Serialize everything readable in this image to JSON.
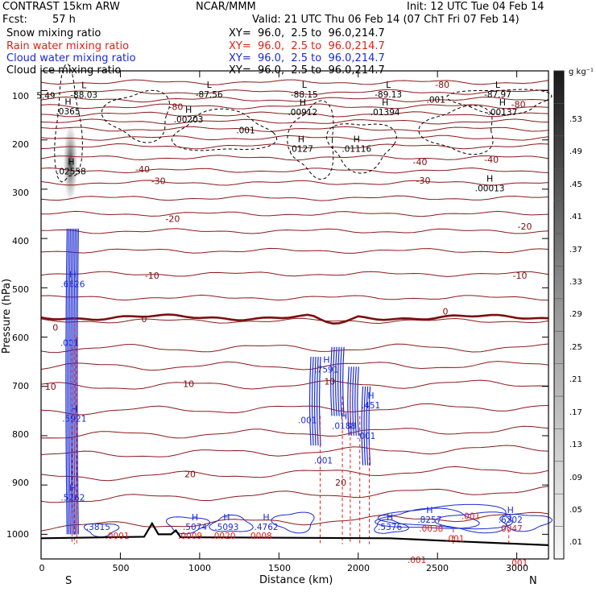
{
  "header": {
    "model": "CONTRAST 15km ARW",
    "center": "NCAR/MMM",
    "init": "Init: 12 UTC Tue 04 Feb 14",
    "fcst_label": "Fcst:",
    "fcst_value": "57 h",
    "valid": "Valid: 21 UTC Thu 06 Feb 14 (07 ChT Fri 07 Feb 14)"
  },
  "legend": [
    {
      "name": "Snow mixing ratio",
      "color": "#000000",
      "xy": "XY=  96.0,  2.5 to  96.0,214.7"
    },
    {
      "name": "Rain water mixing ratio",
      "color": "#e0201c",
      "xy": "XY=  96.0,  2.5 to  96.0,214.7"
    },
    {
      "name": "Cloud water mixing ratio",
      "color": "#1a2ad4",
      "xy": "XY=  96.0,  2.5 to  96.0,214.7"
    },
    {
      "name": "Cloud ice mixing ratio",
      "color": "#000000",
      "xy": "XY=  96.0,  2.5 to  96.0,214.7"
    }
  ],
  "chart_data": {
    "type": "contour cross-section",
    "xlabel": "Distance (km)",
    "ylabel": "Pressure (hPa)",
    "x_ticks": [
      0,
      500,
      1000,
      1500,
      2000,
      2500,
      3000
    ],
    "y_ticks": [
      100,
      200,
      300,
      400,
      500,
      600,
      700,
      800,
      900,
      1000
    ],
    "xlim": [
      0,
      3200
    ],
    "ylim_inverted": [
      60,
      1050
    ],
    "x_end_labels": {
      "left": "S",
      "right": "N"
    },
    "colorbar": {
      "unit": "g kg⁻¹",
      "labels": [
        ".53",
        ".49",
        ".45",
        ".41",
        ".37",
        ".33",
        ".29",
        ".25",
        ".21",
        ".17",
        ".13",
        ".09",
        ".05",
        ".01"
      ]
    },
    "temperature_isotherm_labels": [
      {
        "text": "-80",
        "x": 2530,
        "p": 88
      },
      {
        "text": "-80",
        "x": 850,
        "p": 133
      },
      {
        "text": "-80",
        "x": 3010,
        "p": 128
      },
      {
        "text": "-40",
        "x": 640,
        "p": 259
      },
      {
        "text": "-40",
        "x": 2390,
        "p": 245
      },
      {
        "text": "-40",
        "x": 2840,
        "p": 240
      },
      {
        "text": "-30",
        "x": 740,
        "p": 283
      },
      {
        "text": "-30",
        "x": 2410,
        "p": 282
      },
      {
        "text": "-20",
        "x": 830,
        "p": 360
      },
      {
        "text": "-20",
        "x": 3050,
        "p": 375
      },
      {
        "text": "-10",
        "x": 700,
        "p": 475
      },
      {
        "text": "-10",
        "x": 3020,
        "p": 475
      },
      {
        "text": "0",
        "x": 650,
        "p": 563
      },
      {
        "text": "0",
        "x": 2550,
        "p": 548
      },
      {
        "text": "0",
        "x": 90,
        "p": 580
      },
      {
        "text": "10",
        "x": 930,
        "p": 695
      },
      {
        "text": "10",
        "x": 1820,
        "p": 690
      },
      {
        "text": "10",
        "x": 60,
        "p": 700
      },
      {
        "text": "20",
        "x": 940,
        "p": 878
      },
      {
        "text": "20",
        "x": 1890,
        "p": 895
      }
    ],
    "extrema_labels": [
      {
        "letter": "L",
        "value": "-88.03",
        "x": 270,
        "p": 108
      },
      {
        "letter": "L",
        "value": "-87.56",
        "x": 1060,
        "p": 107
      },
      {
        "letter": "L",
        "value": "-88.15",
        "x": 1660,
        "p": 107
      },
      {
        "letter": "L",
        "value": "-89.13",
        "x": 2190,
        "p": 107
      },
      {
        "letter": "L",
        "value": "-87.97",
        "x": 2880,
        "p": 107
      },
      {
        "letter": "",
        "value": "5.49",
        "x": 30,
        "p": 110
      },
      {
        "letter": "H",
        "value": ".0365",
        "x": 170,
        "p": 142
      },
      {
        "letter": "H",
        "value": ".00203",
        "x": 930,
        "p": 158
      },
      {
        "letter": "",
        "value": ".001",
        "x": 1290,
        "p": 180
      },
      {
        "letter": "H",
        "value": ".00912",
        "x": 1650,
        "p": 143
      },
      {
        "letter": "H",
        "value": ".01394",
        "x": 2170,
        "p": 143
      },
      {
        "letter": "",
        "value": ".001",
        "x": 2490,
        "p": 118
      },
      {
        "letter": "H",
        "value": ".00137",
        "x": 2910,
        "p": 143
      },
      {
        "letter": "H",
        "value": ".0127",
        "x": 1640,
        "p": 218
      },
      {
        "letter": "H",
        "value": ".01116",
        "x": 1990,
        "p": 218
      },
      {
        "letter": "H",
        "value": ".02558",
        "x": 190,
        "p": 263
      },
      {
        "letter": "H",
        "value": ".00013",
        "x": 2830,
        "p": 298
      },
      {
        "letter": "H",
        "value": ".6626",
        "x": 200,
        "p": 492
      },
      {
        "letter": "",
        "value": ".001",
        "x": 180,
        "p": 611
      },
      {
        "letter": "H",
        "value": ".7591",
        "x": 1800,
        "p": 665
      },
      {
        "letter": "H",
        "value": ".451",
        "x": 2080,
        "p": 738
      },
      {
        "letter": "",
        "value": ".001",
        "x": 1680,
        "p": 768
      },
      {
        "letter": "H",
        "value": ".0188",
        "x": 1910,
        "p": 780
      },
      {
        "letter": "",
        "value": ".001",
        "x": 2050,
        "p": 800
      },
      {
        "letter": "",
        "value": ".001",
        "x": 1780,
        "p": 850
      },
      {
        "letter": "H",
        "value": ".5921",
        "x": 210,
        "p": 765
      },
      {
        "letter": "H",
        "value": ".5262",
        "x": 200,
        "p": 925
      },
      {
        "letter": "",
        "value": ".3815",
        "x": 360,
        "p": 985
      },
      {
        "letter": "",
        "value": ".0001",
        "x": 480,
        "p": 1003
      },
      {
        "letter": "H",
        "value": ".5074",
        "x": 970,
        "p": 985
      },
      {
        "letter": "",
        "value": ".0009",
        "x": 940,
        "p": 1003
      },
      {
        "letter": "H",
        "value": ".5093",
        "x": 1170,
        "p": 985
      },
      {
        "letter": "",
        "value": ".0020",
        "x": 1150,
        "p": 1003
      },
      {
        "letter": "H",
        "value": ".4762",
        "x": 1420,
        "p": 985
      },
      {
        "letter": "",
        "value": ".0008",
        "x": 1380,
        "p": 1003
      },
      {
        "letter": "H",
        "value": ".5376",
        "x": 2200,
        "p": 985
      },
      {
        "letter": "H",
        "value": ".8257",
        "x": 2450,
        "p": 970
      },
      {
        "letter": "",
        "value": ".0038",
        "x": 2460,
        "p": 988
      },
      {
        "letter": "",
        "value": ".001",
        "x": 2710,
        "p": 963
      },
      {
        "letter": "H",
        "value": ".6302",
        "x": 2960,
        "p": 970
      },
      {
        "letter": "",
        "value": ".0047",
        "x": 2960,
        "p": 988
      },
      {
        "letter": "",
        "value": ".001",
        "x": 2610,
        "p": 1008
      },
      {
        "letter": "",
        "value": ".001",
        "x": 2370,
        "p": 1052
      },
      {
        "letter": "",
        "value": ".001",
        "x": 3010,
        "p": 1057
      }
    ]
  }
}
